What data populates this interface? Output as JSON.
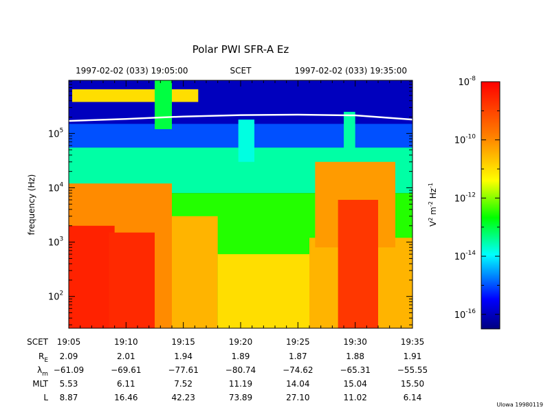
{
  "chart_data": {
    "type": "heatmap",
    "title": "Polar PWI SFR-A Ez",
    "time_header": {
      "start": "1997-02-02 (033) 19:05:00",
      "middle": "SCET",
      "end": "1997-02-02 (033) 19:35:00"
    },
    "ylabel": "frequency (Hz)",
    "y_scale": "log",
    "ylim": [
      26,
      950000
    ],
    "y_tick_labels": [
      {
        "value": 100,
        "base": "10",
        "exp": "2"
      },
      {
        "value": 1000,
        "base": "10",
        "exp": "3"
      },
      {
        "value": 10000,
        "base": "10",
        "exp": "4"
      },
      {
        "value": 100000,
        "base": "10",
        "exp": "5"
      }
    ],
    "x_unit": "minutes after 19:05 SCET",
    "xlim": [
      0,
      30
    ],
    "colorbar": {
      "label_base": "V",
      "label_sup1": "2",
      "label_mid": " m",
      "label_sup2": "-2",
      "label_end": " Hz",
      "label_sup3": "-1",
      "scale": "log",
      "range_exp": [
        -16.5,
        -8
      ],
      "ticks": [
        {
          "value": -8,
          "base": "10",
          "exp": "-8"
        },
        {
          "value": -10,
          "base": "10",
          "exp": "-10"
        },
        {
          "value": -12,
          "base": "10",
          "exp": "-12"
        },
        {
          "value": -14,
          "base": "10",
          "exp": "-14"
        },
        {
          "value": -16,
          "base": "10",
          "exp": "-16"
        }
      ]
    },
    "ephemeris": {
      "row_labels": [
        {
          "main": "SCET",
          "sub": ""
        },
        {
          "main": "R",
          "sub": "E"
        },
        {
          "main": "λ",
          "sub": "m"
        },
        {
          "main": "MLT",
          "sub": ""
        },
        {
          "main": "L",
          "sub": ""
        }
      ],
      "columns": [
        {
          "minute": 0,
          "values": [
            "19:05",
            "2.09",
            "−61.09",
            "5.53",
            "8.87"
          ]
        },
        {
          "minute": 5,
          "values": [
            "19:10",
            "2.01",
            "−69.61",
            "6.11",
            "16.46"
          ]
        },
        {
          "minute": 10,
          "values": [
            "19:15",
            "1.94",
            "−77.61",
            "7.52",
            "42.23"
          ]
        },
        {
          "minute": 15,
          "values": [
            "19:20",
            "1.89",
            "−80.74",
            "11.19",
            "73.89"
          ]
        },
        {
          "minute": 20,
          "values": [
            "19:25",
            "1.87",
            "−74.62",
            "14.04",
            "27.10"
          ]
        },
        {
          "minute": 25,
          "values": [
            "19:30",
            "1.88",
            "−65.31",
            "15.04",
            "11.02"
          ]
        },
        {
          "minute": 30,
          "values": [
            "19:35",
            "1.91",
            "−55.55",
            "15.50",
            "6.14"
          ]
        }
      ]
    },
    "gyrofrequency_line": {
      "color": "#ffffff",
      "points": [
        {
          "t": 0,
          "f": 170000
        },
        {
          "t": 5,
          "f": 185000
        },
        {
          "t": 10,
          "f": 205000
        },
        {
          "t": 15,
          "f": 218000
        },
        {
          "t": 20,
          "f": 222000
        },
        {
          "t": 25,
          "f": 215000
        },
        {
          "t": 30,
          "f": 180000
        }
      ]
    },
    "intensity_regions": [
      {
        "t0": 0,
        "t1": 30,
        "f0": 26,
        "f1": 950000,
        "log_psd": -16.0
      },
      {
        "t0": 0,
        "t1": 30,
        "f0": 55000,
        "f1": 150000,
        "log_psd": -15.0
      },
      {
        "t0": 0,
        "t1": 30,
        "f0": 8000,
        "f1": 55000,
        "log_psd": -13.5
      },
      {
        "t0": 0,
        "t1": 30,
        "f0": 26,
        "f1": 8000,
        "log_psd": -12.5
      },
      {
        "t0": 0,
        "t1": 9,
        "f0": 26,
        "f1": 12000,
        "log_psd": -10.0
      },
      {
        "t0": 0,
        "t1": 4,
        "f0": 26,
        "f1": 2000,
        "log_psd": -8.5
      },
      {
        "t0": 3.5,
        "t1": 7.5,
        "f0": 26,
        "f1": 1500,
        "log_psd": -8.6
      },
      {
        "t0": 9,
        "t1": 13,
        "f0": 26,
        "f1": 3000,
        "log_psd": -10.5
      },
      {
        "t0": 13,
        "t1": 21,
        "f0": 26,
        "f1": 600,
        "log_psd": -11.0
      },
      {
        "t0": 21,
        "t1": 30,
        "f0": 26,
        "f1": 1200,
        "log_psd": -10.5
      },
      {
        "t0": 21.5,
        "t1": 28.5,
        "f0": 800,
        "f1": 30000,
        "log_psd": -10.2
      },
      {
        "t0": 23.5,
        "t1": 27,
        "f0": 26,
        "f1": 6000,
        "log_psd": -8.8
      },
      {
        "t0": 0.3,
        "t1": 11.3,
        "f0": 380000,
        "f1": 650000,
        "log_psd": -11.0
      },
      {
        "t0": 7.5,
        "t1": 9,
        "f0": 120000,
        "f1": 950000,
        "log_psd": -13.0
      },
      {
        "t0": 14.8,
        "t1": 16.2,
        "f0": 30000,
        "f1": 180000,
        "log_psd": -13.8
      },
      {
        "t0": 24,
        "t1": 25,
        "f0": 40000,
        "f1": 250000,
        "log_psd": -13.5
      }
    ]
  },
  "footer": "Ulowa 19980119"
}
